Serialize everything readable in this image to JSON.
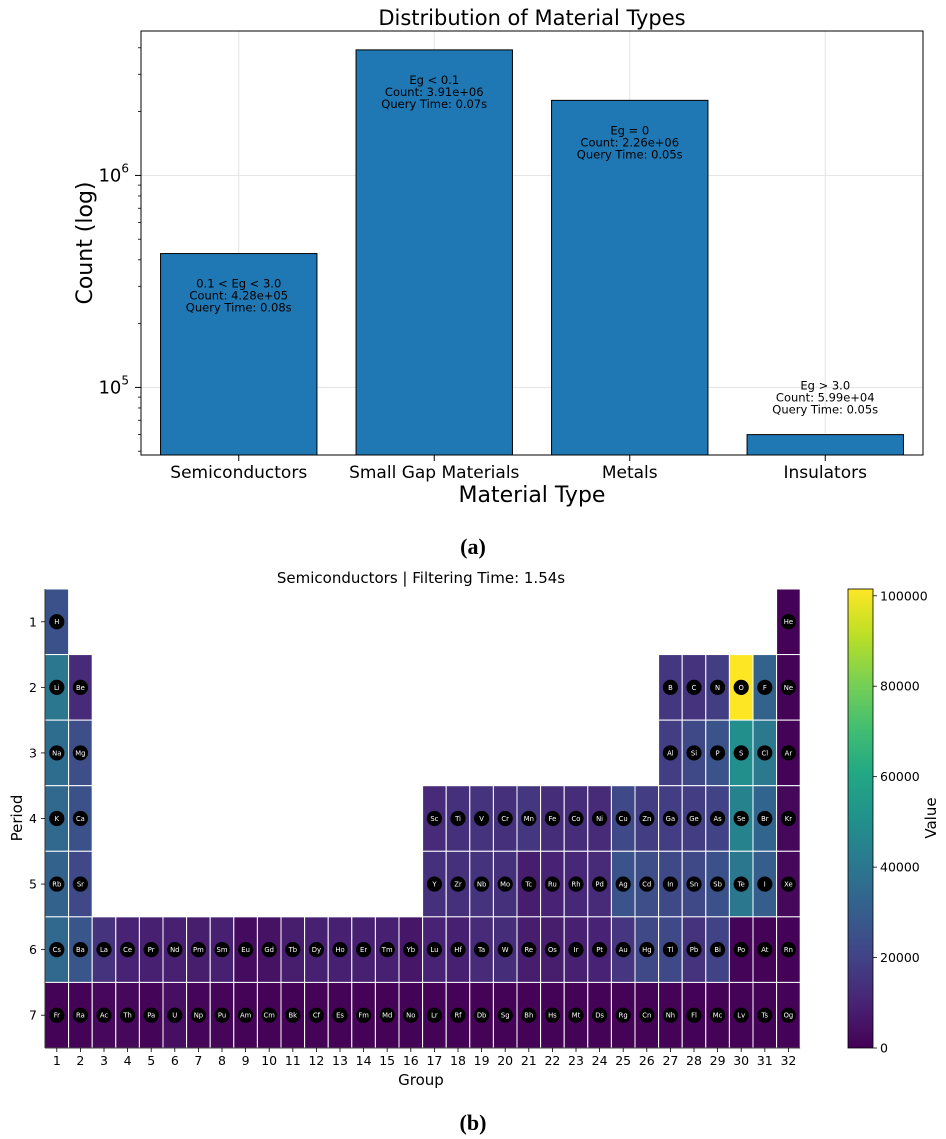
{
  "chart_data": [
    {
      "type": "bar",
      "title": "Distribution of Material Types",
      "xlabel": "Material Type",
      "ylabel": "Count (log)",
      "yscale": "log",
      "ylim": [
        48000,
        4800000
      ],
      "yticks": [
        {
          "value": 100000,
          "base": "10",
          "exp": "5"
        },
        {
          "value": 1000000,
          "base": "10",
          "exp": "6"
        }
      ],
      "grid": true,
      "bar_color": "#1f77b4",
      "categories": [
        "Semiconductors",
        "Small Gap Materials",
        "Metals",
        "Insulators"
      ],
      "values": [
        428000,
        3910000,
        2260000,
        59900
      ],
      "annotations": [
        [
          "0.1 < Eg < 3.0",
          "Count: 4.28e+05",
          "Query Time: 0.08s"
        ],
        [
          "Eg < 0.1",
          "Count: 3.91e+06",
          "Query Time: 0.07s"
        ],
        [
          "Eg = 0",
          "Count: 2.26e+06",
          "Query Time: 0.05s"
        ],
        [
          "Eg > 3.0",
          "Count: 5.99e+04",
          "Query Time: 0.05s"
        ]
      ]
    },
    {
      "type": "heatmap",
      "title": "Semiconductors | Filtering Time: 1.54s",
      "xlabel": "Group",
      "ylabel": "Period",
      "colorbar_label": "Value",
      "colormap": "viridis",
      "vmin": 0,
      "vmax": 101500,
      "colorbar_ticks": [
        0,
        20000,
        40000,
        60000,
        80000,
        100000
      ],
      "groups": [
        "1",
        "2",
        "3",
        "4",
        "5",
        "6",
        "7",
        "8",
        "9",
        "10",
        "11",
        "12",
        "13",
        "14",
        "15",
        "16",
        "17",
        "18",
        "19",
        "20",
        "21",
        "22",
        "23",
        "24",
        "25",
        "26",
        "27",
        "28",
        "29",
        "30",
        "31",
        "32"
      ],
      "periods": [
        "1",
        "2",
        "3",
        "4",
        "5",
        "6",
        "7"
      ],
      "elements": [
        {
          "symbol": "H",
          "period": 1,
          "group": 1,
          "value": 25000
        },
        {
          "symbol": "He",
          "period": 1,
          "group": 32,
          "value": 500
        },
        {
          "symbol": "Li",
          "period": 2,
          "group": 1,
          "value": 40000
        },
        {
          "symbol": "Be",
          "period": 2,
          "group": 2,
          "value": 12000
        },
        {
          "symbol": "B",
          "period": 2,
          "group": 27,
          "value": 16000
        },
        {
          "symbol": "C",
          "period": 2,
          "group": 28,
          "value": 15000
        },
        {
          "symbol": "N",
          "period": 2,
          "group": 29,
          "value": 18000
        },
        {
          "symbol": "O",
          "period": 2,
          "group": 30,
          "value": 101500
        },
        {
          "symbol": "F",
          "period": 2,
          "group": 31,
          "value": 32000
        },
        {
          "symbol": "Ne",
          "period": 2,
          "group": 32,
          "value": 500
        },
        {
          "symbol": "Na",
          "period": 3,
          "group": 1,
          "value": 36000
        },
        {
          "symbol": "Mg",
          "period": 3,
          "group": 2,
          "value": 24000
        },
        {
          "symbol": "Al",
          "period": 3,
          "group": 27,
          "value": 18000
        },
        {
          "symbol": "Si",
          "period": 3,
          "group": 28,
          "value": 22000
        },
        {
          "symbol": "P",
          "period": 3,
          "group": 29,
          "value": 26000
        },
        {
          "symbol": "S",
          "period": 3,
          "group": 30,
          "value": 50000
        },
        {
          "symbol": "Cl",
          "period": 3,
          "group": 31,
          "value": 41000
        },
        {
          "symbol": "Ar",
          "period": 3,
          "group": 32,
          "value": 500
        },
        {
          "symbol": "K",
          "period": 4,
          "group": 1,
          "value": 34000
        },
        {
          "symbol": "Ca",
          "period": 4,
          "group": 2,
          "value": 25000
        },
        {
          "symbol": "Sc",
          "period": 4,
          "group": 17,
          "value": 12000
        },
        {
          "symbol": "Ti",
          "period": 4,
          "group": 18,
          "value": 14000
        },
        {
          "symbol": "V",
          "period": 4,
          "group": 19,
          "value": 15000
        },
        {
          "symbol": "Cr",
          "period": 4,
          "group": 20,
          "value": 14000
        },
        {
          "symbol": "Mn",
          "period": 4,
          "group": 21,
          "value": 16000
        },
        {
          "symbol": "Fe",
          "period": 4,
          "group": 22,
          "value": 13000
        },
        {
          "symbol": "Co",
          "period": 4,
          "group": 23,
          "value": 13000
        },
        {
          "symbol": "Ni",
          "period": 4,
          "group": 24,
          "value": 12000
        },
        {
          "symbol": "Cu",
          "period": 4,
          "group": 25,
          "value": 22000
        },
        {
          "symbol": "Zn",
          "period": 4,
          "group": 26,
          "value": 18000
        },
        {
          "symbol": "Ga",
          "period": 4,
          "group": 27,
          "value": 18000
        },
        {
          "symbol": "Ge",
          "period": 4,
          "group": 28,
          "value": 18000
        },
        {
          "symbol": "As",
          "period": 4,
          "group": 29,
          "value": 20000
        },
        {
          "symbol": "Se",
          "period": 4,
          "group": 30,
          "value": 45000
        },
        {
          "symbol": "Br",
          "period": 4,
          "group": 31,
          "value": 33000
        },
        {
          "symbol": "Kr",
          "period": 4,
          "group": 32,
          "value": 2000
        },
        {
          "symbol": "Rb",
          "period": 5,
          "group": 1,
          "value": 32000
        },
        {
          "symbol": "Sr",
          "period": 5,
          "group": 2,
          "value": 22000
        },
        {
          "symbol": "Y",
          "period": 5,
          "group": 17,
          "value": 14000
        },
        {
          "symbol": "Zr",
          "period": 5,
          "group": 18,
          "value": 14000
        },
        {
          "symbol": "Nb",
          "period": 5,
          "group": 19,
          "value": 15000
        },
        {
          "symbol": "Mo",
          "period": 5,
          "group": 20,
          "value": 14000
        },
        {
          "symbol": "Tc",
          "period": 5,
          "group": 21,
          "value": 8000
        },
        {
          "symbol": "Ru",
          "period": 5,
          "group": 22,
          "value": 10000
        },
        {
          "symbol": "Rh",
          "period": 5,
          "group": 23,
          "value": 11000
        },
        {
          "symbol": "Pd",
          "period": 5,
          "group": 24,
          "value": 12000
        },
        {
          "symbol": "Ag",
          "period": 5,
          "group": 25,
          "value": 26000
        },
        {
          "symbol": "Cd",
          "period": 5,
          "group": 26,
          "value": 24000
        },
        {
          "symbol": "In",
          "period": 5,
          "group": 27,
          "value": 22000
        },
        {
          "symbol": "Sn",
          "period": 5,
          "group": 28,
          "value": 22000
        },
        {
          "symbol": "Sb",
          "period": 5,
          "group": 29,
          "value": 25000
        },
        {
          "symbol": "Te",
          "period": 5,
          "group": 30,
          "value": 40000
        },
        {
          "symbol": "I",
          "period": 5,
          "group": 31,
          "value": 30000
        },
        {
          "symbol": "Xe",
          "period": 5,
          "group": 32,
          "value": 2000
        },
        {
          "symbol": "Cs",
          "period": 6,
          "group": 1,
          "value": 34000
        },
        {
          "symbol": "Ba",
          "period": 6,
          "group": 2,
          "value": 27000
        },
        {
          "symbol": "La",
          "period": 6,
          "group": 3,
          "value": 15000
        },
        {
          "symbol": "Ce",
          "period": 6,
          "group": 4,
          "value": 10000
        },
        {
          "symbol": "Pr",
          "period": 6,
          "group": 5,
          "value": 9000
        },
        {
          "symbol": "Nd",
          "period": 6,
          "group": 6,
          "value": 9000
        },
        {
          "symbol": "Pm",
          "period": 6,
          "group": 7,
          "value": 8000
        },
        {
          "symbol": "Sm",
          "period": 6,
          "group": 8,
          "value": 9000
        },
        {
          "symbol": "Eu",
          "period": 6,
          "group": 9,
          "value": 3000
        },
        {
          "symbol": "Gd",
          "period": 6,
          "group": 10,
          "value": 5000
        },
        {
          "symbol": "Tb",
          "period": 6,
          "group": 11,
          "value": 8000
        },
        {
          "symbol": "Dy",
          "period": 6,
          "group": 12,
          "value": 9000
        },
        {
          "symbol": "Ho",
          "period": 6,
          "group": 13,
          "value": 9000
        },
        {
          "symbol": "Er",
          "period": 6,
          "group": 14,
          "value": 9000
        },
        {
          "symbol": "Tm",
          "period": 6,
          "group": 15,
          "value": 9000
        },
        {
          "symbol": "Yb",
          "period": 6,
          "group": 16,
          "value": 6000
        },
        {
          "symbol": "Lu",
          "period": 6,
          "group": 17,
          "value": 10000
        },
        {
          "symbol": "Hf",
          "period": 6,
          "group": 18,
          "value": 9000
        },
        {
          "symbol": "Ta",
          "period": 6,
          "group": 19,
          "value": 12000
        },
        {
          "symbol": "W",
          "period": 6,
          "group": 20,
          "value": 13000
        },
        {
          "symbol": "Re",
          "period": 6,
          "group": 21,
          "value": 8000
        },
        {
          "symbol": "Os",
          "period": 6,
          "group": 22,
          "value": 8000
        },
        {
          "symbol": "Ir",
          "period": 6,
          "group": 23,
          "value": 9000
        },
        {
          "symbol": "Pt",
          "period": 6,
          "group": 24,
          "value": 10000
        },
        {
          "symbol": "Au",
          "period": 6,
          "group": 25,
          "value": 16000
        },
        {
          "symbol": "Hg",
          "period": 6,
          "group": 26,
          "value": 22000
        },
        {
          "symbol": "Tl",
          "period": 6,
          "group": 27,
          "value": 22000
        },
        {
          "symbol": "Pb",
          "period": 6,
          "group": 28,
          "value": 15000
        },
        {
          "symbol": "Bi",
          "period": 6,
          "group": 29,
          "value": 20000
        },
        {
          "symbol": "Po",
          "period": 6,
          "group": 30,
          "value": 1000
        },
        {
          "symbol": "At",
          "period": 6,
          "group": 31,
          "value": 500
        },
        {
          "symbol": "Rn",
          "period": 6,
          "group": 32,
          "value": 500
        },
        {
          "symbol": "Fr",
          "period": 7,
          "group": 1,
          "value": 500
        },
        {
          "symbol": "Ra",
          "period": 7,
          "group": 2,
          "value": 500
        },
        {
          "symbol": "Ac",
          "period": 7,
          "group": 3,
          "value": 2000
        },
        {
          "symbol": "Th",
          "period": 7,
          "group": 4,
          "value": 2000
        },
        {
          "symbol": "Pa",
          "period": 7,
          "group": 5,
          "value": 1000
        },
        {
          "symbol": "U",
          "period": 7,
          "group": 6,
          "value": 4000
        },
        {
          "symbol": "Np",
          "period": 7,
          "group": 7,
          "value": 1500
        },
        {
          "symbol": "Pu",
          "period": 7,
          "group": 8,
          "value": 1500
        },
        {
          "symbol": "Am",
          "period": 7,
          "group": 9,
          "value": 500
        },
        {
          "symbol": "Cm",
          "period": 7,
          "group": 10,
          "value": 500
        },
        {
          "symbol": "Bk",
          "period": 7,
          "group": 11,
          "value": 500
        },
        {
          "symbol": "Cf",
          "period": 7,
          "group": 12,
          "value": 500
        },
        {
          "symbol": "Es",
          "period": 7,
          "group": 13,
          "value": 500
        },
        {
          "symbol": "Fm",
          "period": 7,
          "group": 14,
          "value": 500
        },
        {
          "symbol": "Md",
          "period": 7,
          "group": 15,
          "value": 500
        },
        {
          "symbol": "No",
          "period": 7,
          "group": 16,
          "value": 500
        },
        {
          "symbol": "Lr",
          "period": 7,
          "group": 17,
          "value": 500
        },
        {
          "symbol": "Rf",
          "period": 7,
          "group": 18,
          "value": 500
        },
        {
          "symbol": "Db",
          "period": 7,
          "group": 19,
          "value": 500
        },
        {
          "symbol": "Sg",
          "period": 7,
          "group": 20,
          "value": 500
        },
        {
          "symbol": "Bh",
          "period": 7,
          "group": 21,
          "value": 500
        },
        {
          "symbol": "Hs",
          "period": 7,
          "group": 22,
          "value": 500
        },
        {
          "symbol": "Mt",
          "period": 7,
          "group": 23,
          "value": 500
        },
        {
          "symbol": "Ds",
          "period": 7,
          "group": 24,
          "value": 500
        },
        {
          "symbol": "Rg",
          "period": 7,
          "group": 25,
          "value": 500
        },
        {
          "symbol": "Cn",
          "period": 7,
          "group": 26,
          "value": 500
        },
        {
          "symbol": "Nh",
          "period": 7,
          "group": 27,
          "value": 500
        },
        {
          "symbol": "Fl",
          "period": 7,
          "group": 28,
          "value": 500
        },
        {
          "symbol": "Mc",
          "period": 7,
          "group": 29,
          "value": 500
        },
        {
          "symbol": "Lv",
          "period": 7,
          "group": 30,
          "value": 500
        },
        {
          "symbol": "Ts",
          "period": 7,
          "group": 31,
          "value": 500
        },
        {
          "symbol": "Og",
          "period": 7,
          "group": 32,
          "value": 500
        }
      ]
    }
  ],
  "captions": {
    "a": "(a)",
    "b": "(b)"
  }
}
